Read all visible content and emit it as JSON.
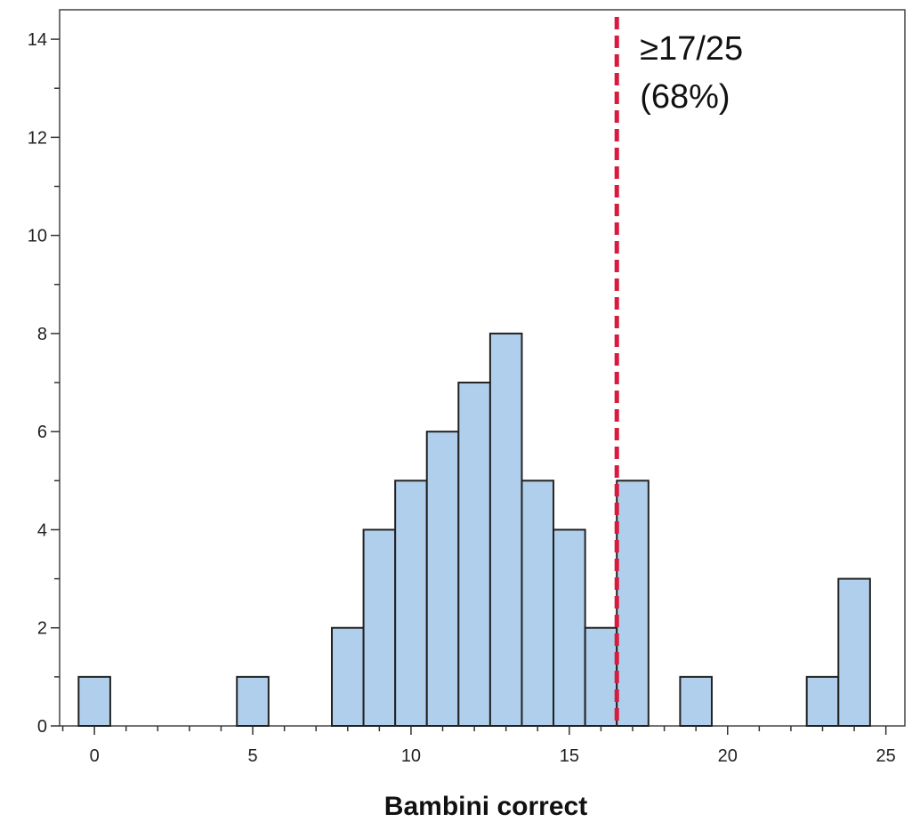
{
  "chart_data": {
    "type": "bar",
    "title": "",
    "xlabel": "Bambini correct",
    "ylabel": "",
    "x": [
      0,
      5,
      8,
      9,
      10,
      11,
      12,
      13,
      14,
      15,
      16,
      17,
      19,
      23,
      24
    ],
    "values": [
      1,
      1,
      2,
      4,
      5,
      6,
      7,
      8,
      5,
      4,
      2,
      5,
      1,
      1,
      3
    ],
    "bin_width": 1,
    "xlim": [
      -1.1,
      25.6
    ],
    "ylim": [
      0,
      14.6
    ],
    "xticks": [
      0,
      5,
      10,
      15,
      20,
      25
    ],
    "yticks": [
      0,
      2,
      4,
      6,
      8,
      10,
      12,
      14
    ],
    "grid": false,
    "bar_color": "#b0cfec",
    "bar_edge_color": "#222222",
    "threshold": {
      "x": 16.5,
      "color": "#d81a3c",
      "style": "dashed",
      "label_line1": "≥17/25",
      "label_line2": "(68%)"
    }
  }
}
